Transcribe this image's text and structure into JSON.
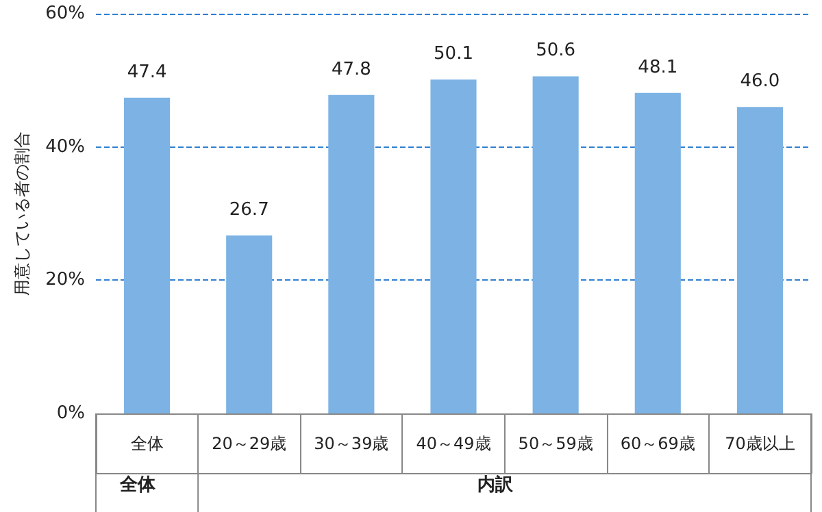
{
  "chart_data": {
    "type": "bar",
    "ylabel": "用意している者の割合",
    "categories": [
      "全体",
      "20～29歳",
      "30～39歳",
      "40～49歳",
      "50～59歳",
      "60～69歳",
      "70歳以上"
    ],
    "values": [
      47.4,
      26.7,
      47.8,
      50.1,
      50.6,
      48.1,
      46.0
    ],
    "value_labels": [
      "47.4",
      "26.7",
      "47.8",
      "50.1",
      "50.6",
      "48.1",
      "46.0"
    ],
    "color": "#7cb3e4",
    "ylim": [
      0,
      60
    ],
    "yticks": [
      {
        "value": 0,
        "label": "0%"
      },
      {
        "value": 20,
        "label": "20%"
      },
      {
        "value": 40,
        "label": "40%"
      },
      {
        "value": 60,
        "label": "60%"
      }
    ],
    "grid": "y",
    "line_style": "dashed",
    "annotations": [
      "全体",
      "内訳"
    ]
  }
}
